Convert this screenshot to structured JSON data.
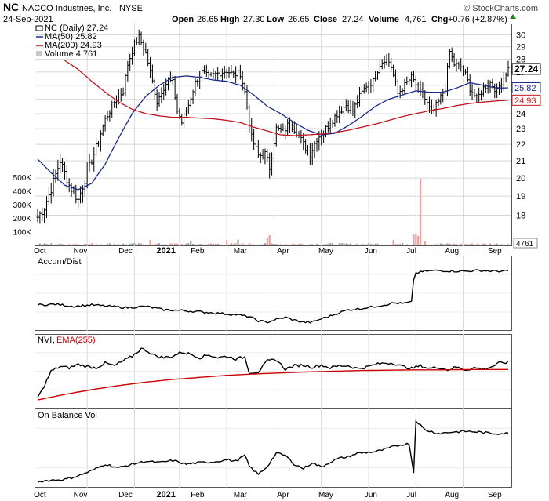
{
  "header": {
    "symbol": "NC",
    "company": "NACCO Industries, Inc.",
    "exchange": "NYSE",
    "date": "24-Sep-2021",
    "open_label": "Open",
    "open": "26.65",
    "high_label": "High",
    "high": "27.30",
    "low_label": "Low",
    "low": "26.65",
    "close_label": "Close",
    "close": "27.24",
    "volume_label": "Volume",
    "volume": "4,761",
    "chg_label": "Chg",
    "chg": "+0.76 (+2.87%)",
    "brand": "© StockCharts.com"
  },
  "colors": {
    "price": "#000000",
    "ma50": "#1a2a8a",
    "ma200": "#c0141e",
    "vol_up": "#a0a0a0",
    "vol_down": "#e8a0a0",
    "ema": "#cc0000",
    "grid": "#d8d8d8"
  },
  "chart_data": [
    {
      "type": "line",
      "name": "price",
      "title": "NC (Daily) 27.24",
      "legend": [
        {
          "label": "NC (Daily) 27.24",
          "color": "#000000"
        },
        {
          "label": "MA(50) 25.82",
          "color": "#1a2a8a"
        },
        {
          "label": "MA(200) 24.93",
          "color": "#c0141e"
        },
        {
          "label": "Volume 4,761",
          "color": "#a0a0a0"
        }
      ],
      "legend_placement": "top-left",
      "ylim": [
        17.2,
        30.5
      ],
      "y_ticks": [
        18,
        19,
        20,
        21,
        22,
        23,
        24,
        25,
        26,
        27,
        28,
        29,
        30
      ],
      "y_scale": "log",
      "grid": true,
      "last_price_label": "27.24",
      "ma50_label": "25.82",
      "ma200_label": "24.93",
      "x_labels": [
        "Oct",
        "Nov",
        "Dec",
        "2021",
        "Feb",
        "Mar",
        "Apr",
        "May",
        "Jun",
        "Jul",
        "Aug",
        "Sep"
      ],
      "price_anchors": [
        [
          0,
          17.9
        ],
        [
          3,
          18.4
        ],
        [
          6,
          19.4
        ],
        [
          10,
          21.0
        ],
        [
          14,
          19.6
        ],
        [
          18,
          18.8
        ],
        [
          22,
          20.3
        ],
        [
          26,
          21.8
        ],
        [
          30,
          23.6
        ],
        [
          34,
          24.8
        ],
        [
          38,
          25.6
        ],
        [
          40,
          27.6
        ],
        [
          43,
          29.2
        ],
        [
          45,
          29.8
        ],
        [
          48,
          28.5
        ],
        [
          50,
          27.0
        ],
        [
          53,
          24.8
        ],
        [
          55,
          25.6
        ],
        [
          58,
          26.4
        ],
        [
          60,
          26.2
        ],
        [
          62,
          24.2
        ],
        [
          64,
          23.4
        ],
        [
          67,
          24.6
        ],
        [
          70,
          26.2
        ],
        [
          73,
          27.0
        ],
        [
          76,
          26.6
        ],
        [
          80,
          26.9
        ],
        [
          84,
          27.1
        ],
        [
          87,
          26.8
        ],
        [
          90,
          26.9
        ],
        [
          92,
          25.5
        ],
        [
          95,
          22.4
        ],
        [
          98,
          21.3
        ],
        [
          101,
          21.4
        ],
        [
          103,
          20.6
        ],
        [
          106,
          23.0
        ],
        [
          109,
          22.8
        ],
        [
          112,
          23.4
        ],
        [
          115,
          22.8
        ],
        [
          118,
          22.0
        ],
        [
          121,
          21.4
        ],
        [
          124,
          22.4
        ],
        [
          127,
          22.8
        ],
        [
          130,
          23.4
        ],
        [
          133,
          24.0
        ],
        [
          137,
          24.6
        ],
        [
          140,
          24.2
        ],
        [
          143,
          25.2
        ],
        [
          146,
          26.0
        ],
        [
          149,
          26.3
        ],
        [
          152,
          27.6
        ],
        [
          155,
          28.2
        ],
        [
          157,
          27.4
        ],
        [
          160,
          25.4
        ],
        [
          163,
          26.0
        ],
        [
          166,
          26.6
        ],
        [
          169,
          25.8
        ],
        [
          172,
          25.0
        ],
        [
          175,
          24.0
        ],
        [
          178,
          24.8
        ],
        [
          181,
          25.8
        ],
        [
          183,
          28.6
        ],
        [
          185,
          27.6
        ],
        [
          188,
          27.4
        ],
        [
          190,
          26.8
        ],
        [
          192,
          25.8
        ],
        [
          195,
          25.0
        ],
        [
          198,
          25.8
        ],
        [
          201,
          26.2
        ],
        [
          204,
          25.6
        ],
        [
          207,
          26.6
        ],
        [
          209,
          27.24
        ]
      ],
      "ma50_anchors": [
        [
          0,
          21.1
        ],
        [
          6,
          20.3
        ],
        [
          12,
          19.6
        ],
        [
          18,
          19.35
        ],
        [
          24,
          19.7
        ],
        [
          30,
          20.8
        ],
        [
          36,
          22.4
        ],
        [
          42,
          24.0
        ],
        [
          48,
          25.2
        ],
        [
          54,
          26.0
        ],
        [
          60,
          26.6
        ],
        [
          66,
          26.7
        ],
        [
          72,
          26.6
        ],
        [
          78,
          26.4
        ],
        [
          84,
          26.3
        ],
        [
          90,
          26.0
        ],
        [
          96,
          25.3
        ],
        [
          102,
          24.5
        ],
        [
          108,
          24.0
        ],
        [
          114,
          23.4
        ],
        [
          120,
          22.9
        ],
        [
          126,
          22.6
        ],
        [
          132,
          22.7
        ],
        [
          138,
          23.2
        ],
        [
          144,
          23.8
        ],
        [
          150,
          24.5
        ],
        [
          156,
          25.0
        ],
        [
          162,
          25.3
        ],
        [
          168,
          25.6
        ],
        [
          174,
          25.5
        ],
        [
          180,
          25.5
        ],
        [
          186,
          25.8
        ],
        [
          192,
          26.2
        ],
        [
          198,
          26.0
        ],
        [
          204,
          25.8
        ],
        [
          209,
          25.82
        ]
      ],
      "ma200_anchors": [
        [
          12,
          27.9
        ],
        [
          18,
          27.2
        ],
        [
          24,
          26.3
        ],
        [
          30,
          25.5
        ],
        [
          36,
          24.8
        ],
        [
          42,
          24.3
        ],
        [
          48,
          24.0
        ],
        [
          54,
          23.85
        ],
        [
          60,
          23.75
        ],
        [
          66,
          23.75
        ],
        [
          72,
          23.7
        ],
        [
          78,
          23.65
        ],
        [
          84,
          23.55
        ],
        [
          90,
          23.4
        ],
        [
          96,
          23.1
        ],
        [
          102,
          22.85
        ],
        [
          108,
          22.6
        ],
        [
          114,
          22.55
        ],
        [
          120,
          22.6
        ],
        [
          126,
          22.65
        ],
        [
          132,
          22.75
        ],
        [
          138,
          22.9
        ],
        [
          144,
          23.1
        ],
        [
          150,
          23.3
        ],
        [
          156,
          23.55
        ],
        [
          162,
          23.8
        ],
        [
          168,
          24.0
        ],
        [
          174,
          24.2
        ],
        [
          180,
          24.35
        ],
        [
          186,
          24.55
        ],
        [
          192,
          24.7
        ],
        [
          198,
          24.8
        ],
        [
          204,
          24.88
        ],
        [
          209,
          24.93
        ]
      ]
    },
    {
      "type": "bar",
      "name": "volume",
      "series": [
        {
          "name": "Volume",
          "values": []
        }
      ],
      "ylim": [
        0,
        600000
      ],
      "y_ticks": [
        100000,
        200000,
        300000,
        400000,
        500000
      ],
      "y_tick_labels": [
        "100K",
        "200K",
        "300K",
        "400K",
        "500K"
      ],
      "last_value_label": "4761",
      "spikes": [
        [
          50,
          40000
        ],
        [
          68,
          35000
        ],
        [
          84,
          38000
        ],
        [
          89,
          42000
        ],
        [
          102,
          55000
        ],
        [
          103,
          75000
        ],
        [
          158,
          40000
        ],
        [
          167,
          80000
        ],
        [
          168,
          85000
        ],
        [
          169,
          70000
        ],
        [
          170,
          490000
        ],
        [
          172,
          30000
        ]
      ]
    },
    {
      "type": "line",
      "name": "accum_dist",
      "title": "Accum/Dist",
      "anchors": [
        [
          0,
          33
        ],
        [
          8,
          34
        ],
        [
          16,
          31
        ],
        [
          24,
          33
        ],
        [
          32,
          31
        ],
        [
          40,
          29
        ],
        [
          48,
          31
        ],
        [
          56,
          26
        ],
        [
          64,
          25
        ],
        [
          72,
          23
        ],
        [
          80,
          21
        ],
        [
          88,
          19
        ],
        [
          94,
          16
        ],
        [
          98,
          10
        ],
        [
          102,
          8
        ],
        [
          106,
          12
        ],
        [
          110,
          15
        ],
        [
          114,
          11
        ],
        [
          118,
          8
        ],
        [
          122,
          8
        ],
        [
          126,
          13
        ],
        [
          130,
          17
        ],
        [
          134,
          22
        ],
        [
          138,
          26
        ],
        [
          142,
          27
        ],
        [
          146,
          29
        ],
        [
          150,
          31
        ],
        [
          154,
          33
        ],
        [
          158,
          36
        ],
        [
          162,
          35
        ],
        [
          166,
          37
        ],
        [
          167,
          70
        ],
        [
          168,
          79
        ],
        [
          172,
          82
        ],
        [
          178,
          83
        ],
        [
          184,
          82
        ],
        [
          190,
          82
        ],
        [
          196,
          83
        ],
        [
          202,
          82
        ],
        [
          209,
          82
        ]
      ]
    },
    {
      "type": "line",
      "name": "nvi",
      "title": "NVI",
      "ema_title": "EMA(255)",
      "anchors": [
        [
          0,
          12
        ],
        [
          2,
          22
        ],
        [
          6,
          50
        ],
        [
          10,
          57
        ],
        [
          14,
          55
        ],
        [
          18,
          60
        ],
        [
          22,
          57
        ],
        [
          26,
          55
        ],
        [
          30,
          62
        ],
        [
          34,
          58
        ],
        [
          38,
          65
        ],
        [
          42,
          72
        ],
        [
          46,
          83
        ],
        [
          48,
          81
        ],
        [
          52,
          73
        ],
        [
          56,
          70
        ],
        [
          60,
          72
        ],
        [
          64,
          78
        ],
        [
          68,
          75
        ],
        [
          72,
          70
        ],
        [
          76,
          74
        ],
        [
          80,
          70
        ],
        [
          84,
          72
        ],
        [
          88,
          68
        ],
        [
          92,
          71
        ],
        [
          94,
          48
        ],
        [
          98,
          49
        ],
        [
          102,
          65
        ],
        [
          106,
          67
        ],
        [
          110,
          53
        ],
        [
          114,
          58
        ],
        [
          118,
          59
        ],
        [
          122,
          56
        ],
        [
          126,
          59
        ],
        [
          130,
          55
        ],
        [
          134,
          58
        ],
        [
          138,
          58
        ],
        [
          142,
          54
        ],
        [
          146,
          56
        ],
        [
          150,
          60
        ],
        [
          154,
          62
        ],
        [
          158,
          62
        ],
        [
          162,
          57
        ],
        [
          166,
          54
        ],
        [
          170,
          58
        ],
        [
          174,
          54
        ],
        [
          178,
          56
        ],
        [
          182,
          52
        ],
        [
          186,
          56
        ],
        [
          190,
          52
        ],
        [
          194,
          55
        ],
        [
          198,
          53
        ],
        [
          202,
          57
        ],
        [
          205,
          62
        ],
        [
          209,
          63
        ]
      ],
      "ema_anchors": [
        [
          0,
          8
        ],
        [
          12,
          16
        ],
        [
          24,
          23
        ],
        [
          36,
          29
        ],
        [
          48,
          34
        ],
        [
          60,
          38
        ],
        [
          72,
          41
        ],
        [
          84,
          44
        ],
        [
          96,
          46
        ],
        [
          108,
          47.5
        ],
        [
          120,
          49
        ],
        [
          132,
          50
        ],
        [
          144,
          51
        ],
        [
          156,
          51.5
        ],
        [
          168,
          52
        ],
        [
          180,
          52
        ],
        [
          192,
          52.5
        ],
        [
          209,
          52.5
        ]
      ]
    },
    {
      "type": "line",
      "name": "obv",
      "title": "On Balance Vol",
      "anchors": [
        [
          0,
          4
        ],
        [
          6,
          6
        ],
        [
          12,
          7
        ],
        [
          18,
          12
        ],
        [
          24,
          19
        ],
        [
          30,
          28
        ],
        [
          36,
          23
        ],
        [
          42,
          28
        ],
        [
          48,
          32
        ],
        [
          54,
          30
        ],
        [
          60,
          33
        ],
        [
          66,
          28
        ],
        [
          72,
          30
        ],
        [
          78,
          31
        ],
        [
          84,
          34
        ],
        [
          88,
          32
        ],
        [
          92,
          40
        ],
        [
          94,
          25
        ],
        [
          98,
          14
        ],
        [
          102,
          25
        ],
        [
          106,
          43
        ],
        [
          110,
          40
        ],
        [
          114,
          28
        ],
        [
          118,
          22
        ],
        [
          122,
          30
        ],
        [
          126,
          24
        ],
        [
          130,
          31
        ],
        [
          134,
          36
        ],
        [
          138,
          38
        ],
        [
          142,
          43
        ],
        [
          146,
          44
        ],
        [
          150,
          45
        ],
        [
          154,
          48
        ],
        [
          158,
          52
        ],
        [
          162,
          55
        ],
        [
          165,
          56
        ],
        [
          167,
          16
        ],
        [
          168,
          88
        ],
        [
          172,
          75
        ],
        [
          178,
          70
        ],
        [
          184,
          72
        ],
        [
          190,
          73
        ],
        [
          196,
          72
        ],
        [
          202,
          70
        ],
        [
          209,
          70
        ]
      ]
    }
  ]
}
